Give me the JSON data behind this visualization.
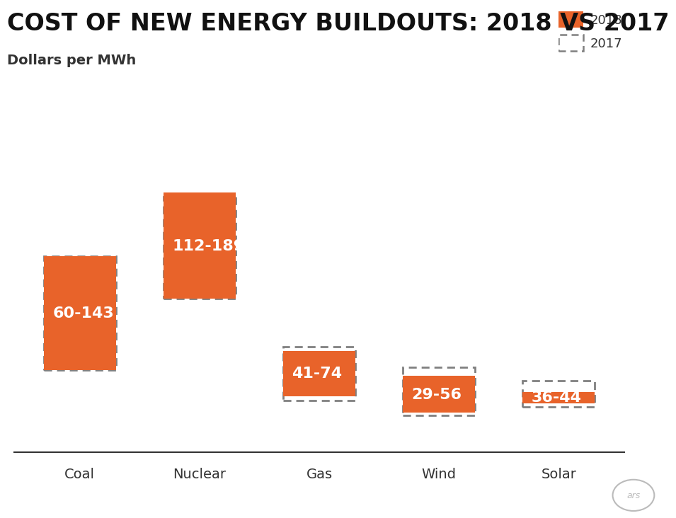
{
  "categories": [
    "Coal",
    "Nuclear",
    "Gas",
    "Wind",
    "Solar"
  ],
  "bar_2018_low": [
    60,
    112,
    41,
    29,
    36
  ],
  "bar_2018_high": [
    143,
    189,
    74,
    56,
    44
  ],
  "bar_2017_low": [
    60,
    112,
    38,
    27,
    33
  ],
  "bar_2017_high": [
    143,
    186,
    77,
    62,
    52
  ],
  "labels_2018": [
    "60-143",
    "112-189",
    "41-74",
    "29-56",
    "36-44"
  ],
  "bar_color": "#E8632A",
  "dash_color": "#808080",
  "title": "COST OF NEW ENERGY BUILDOUTS: 2018 VS 2017",
  "subtitle": "Dollars per MWh",
  "bg_color": "#FFFFFF",
  "text_color_light": "#FFFFFF",
  "label_color": "#333333",
  "ylim": [
    0,
    220
  ],
  "legend_2018": "2018",
  "legend_2017": "2017",
  "title_fontsize": 24,
  "subtitle_fontsize": 14,
  "label_fontsize": 16,
  "tick_fontsize": 14,
  "bar_width": 0.6
}
